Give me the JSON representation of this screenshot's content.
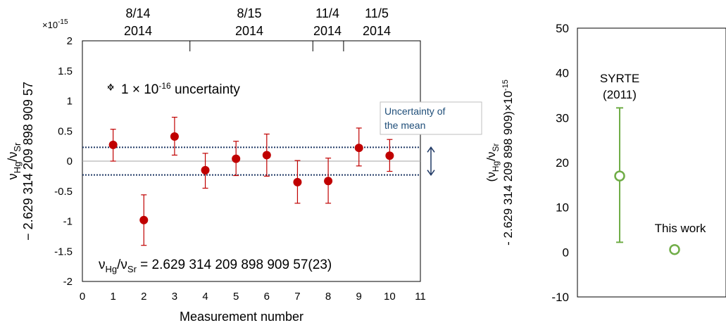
{
  "chart_data": [
    {
      "type": "scatter",
      "title": "",
      "xlabel": "Measurement number",
      "ylabel": "νHg/νSr − 2.629 314 209 898 909 57",
      "ylabel_parts": {
        "nu": "ν",
        "hg": "Hg",
        "slash": "/ν",
        "sr": "Sr"
      },
      "ylabel_line2": "− 2.629 314 209 898 909 57",
      "y_exponent_label": "×10",
      "y_exponent_power": "-15",
      "xlim": [
        0,
        11
      ],
      "ylim": [
        -2,
        2
      ],
      "x_ticks": [
        "0",
        "1",
        "2",
        "3",
        "4",
        "5",
        "6",
        "7",
        "8",
        "9",
        "10",
        "11"
      ],
      "y_ticks": [
        "2",
        "1.5",
        "1",
        "0.5",
        "0",
        "-0.5",
        "-1",
        "-1.5",
        "-2"
      ],
      "x_tick_values": [
        0,
        1,
        2,
        3,
        4,
        5,
        6,
        7,
        8,
        9,
        10,
        11
      ],
      "y_tick_values": [
        2,
        1.5,
        1,
        0.5,
        0,
        -0.5,
        -1,
        -1.5,
        -2
      ],
      "marker_color": "#c00000",
      "errorbar_color": "#c00000",
      "band_color": "#1f3864",
      "points": [
        {
          "x": 1,
          "y": 0.27,
          "err_low": 0.27,
          "err_high": 0.26
        },
        {
          "x": 2,
          "y": -0.98,
          "err_low": 0.42,
          "err_high": 0.42
        },
        {
          "x": 3,
          "y": 0.41,
          "err_low": 0.31,
          "err_high": 0.32
        },
        {
          "x": 4,
          "y": -0.15,
          "err_low": 0.3,
          "err_high": 0.28
        },
        {
          "x": 5,
          "y": 0.04,
          "err_low": 0.28,
          "err_high": 0.29
        },
        {
          "x": 6,
          "y": 0.1,
          "err_low": 0.35,
          "err_high": 0.35
        },
        {
          "x": 7,
          "y": -0.35,
          "err_low": 0.35,
          "err_high": 0.36
        },
        {
          "x": 8,
          "y": -0.33,
          "err_low": 0.37,
          "err_high": 0.38
        },
        {
          "x": 9,
          "y": 0.22,
          "err_low": 0.3,
          "err_high": 0.33
        },
        {
          "x": 10,
          "y": 0.09,
          "err_low": 0.26,
          "err_high": 0.27
        }
      ],
      "mean_band": [
        -0.23,
        0.23
      ],
      "date_groups": [
        {
          "label_date": "8/14",
          "label_year": "2014",
          "x_center": 2
        },
        {
          "label_date": "8/15",
          "label_year": "2014",
          "x_center": 5.5
        },
        {
          "label_date": "11/4",
          "label_year": "2014",
          "x_center": 8
        },
        {
          "label_date": "11/5",
          "label_year": "2014",
          "x_center": 9.5
        }
      ],
      "date_dividers_x": [
        3.5,
        7.5,
        8.5
      ],
      "annotations": {
        "uncertainty_scale_prefix": "1 × 10",
        "uncertainty_scale_power": "-16",
        "uncertainty_scale_suffix": " uncertainty",
        "uncertainty_scale_length": 0.1,
        "uncertainty_scale_x": 0.92,
        "uncertainty_scale_center_y": 1.23,
        "mean_uncertainty_line1": "Uncertainty of",
        "mean_uncertainty_line2": "the mean",
        "result": {
          "nu": "ν",
          "hg": "Hg",
          "slash": "/ν",
          "sr": "Sr",
          "value": " = 2.629 314 209 898 909 57(23)"
        }
      }
    },
    {
      "type": "scatter",
      "title": "",
      "xlabel": "",
      "ylabel": "(νHg/νSr - 2.629 314 209 898 909)×10-15",
      "ylabel_line1_parts": {
        "open": "(ν",
        "hg": "Hg",
        "slash": "/ν",
        "sr": "Sr"
      },
      "ylabel_line2_parts": {
        "text": "- 2.629 314 209 898 909)×10",
        "power": "-15"
      },
      "ylim": [
        -10,
        50
      ],
      "y_ticks": [
        "50",
        "40",
        "30",
        "20",
        "10",
        "0",
        "-10"
      ],
      "y_tick_values": [
        50,
        40,
        30,
        20,
        10,
        0,
        -10
      ],
      "marker_color": "#70ad47",
      "points": [
        {
          "label": "SYRTE",
          "label_year": "(2011)",
          "y": 17.0,
          "err_low": 14.8,
          "err_high": 15.2
        },
        {
          "label": "This work",
          "y": 0.57,
          "err_low": 0.23,
          "err_high": 0.23
        }
      ]
    }
  ]
}
